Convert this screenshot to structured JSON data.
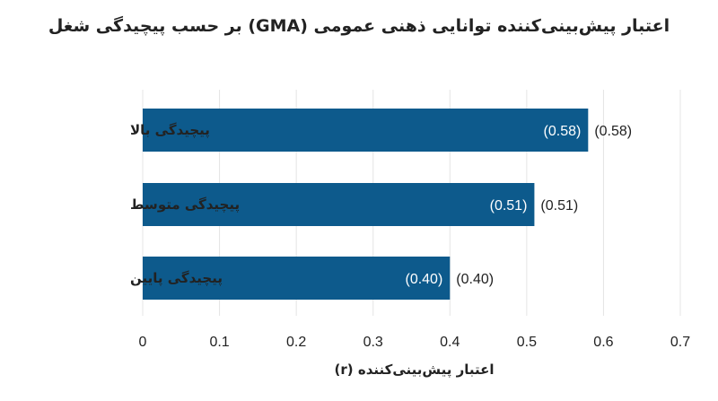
{
  "chart_data": {
    "type": "bar",
    "orientation": "horizontal",
    "title": "اعتبار پیش‌بینی‌کننده توانایی ذهنی عمومی (GMA) بر حسب پیچیدگی شغل",
    "xlabel": "اعتبار پیش‌بینی‌کننده (r)",
    "ylabel": "",
    "categories": [
      "پیچیدگی بالا",
      "پیچیدگی متوسط",
      "پیچیدگی پایین"
    ],
    "values": [
      0.58,
      0.51,
      0.4
    ],
    "data_labels_inside": [
      "(0.58)",
      "(0.51)",
      "(0.40)"
    ],
    "data_labels_outside": [
      "(0.58)",
      "(0.51)",
      "(0.40)"
    ],
    "xlim": [
      0,
      0.7
    ],
    "xticks": [
      "0",
      "0.1",
      "0.2",
      "0.3",
      "0.4",
      "0.5",
      "0.6",
      "0.7"
    ],
    "xtick_values": [
      0,
      0.1,
      0.2,
      0.3,
      0.4,
      0.5,
      0.6,
      0.7
    ],
    "grid": "vertical",
    "colors": {
      "bar": "#0d5a8c",
      "grid": "#e4e4e4",
      "inside_label": "#ffffff",
      "text": "#222222"
    }
  }
}
